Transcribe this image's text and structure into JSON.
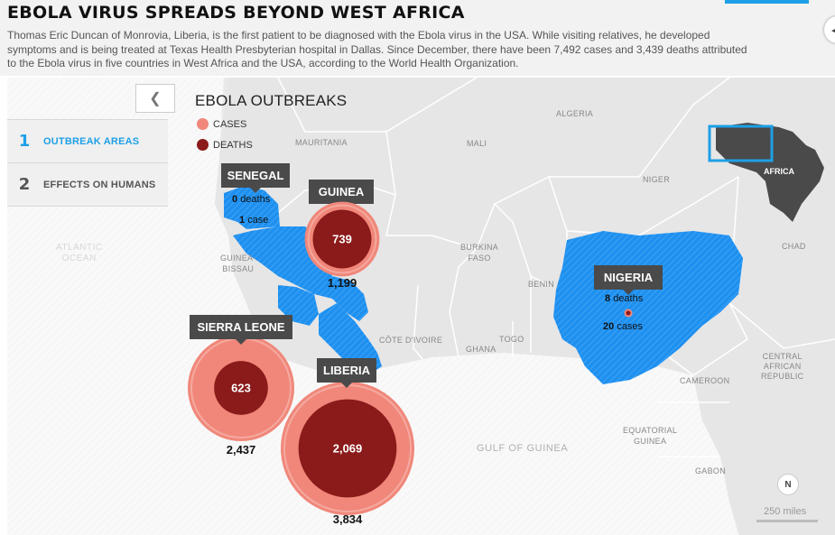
{
  "header": {
    "title": "EBOLA VIRUS SPREADS BEYOND WEST AFRICA",
    "intro": "Thomas Eric Duncan of Monrovia, Liberia, is the first patient to be diagnosed with the Ebola virus in the USA. While visiting relatives, he developed symptoms and is being treated at Texas Health Presbyterian hospital in Dallas. Since December, there have been 7,492 cases and 3,439 deaths attributed to the Ebola virus in five countries in West Africa and the USA, according to the World Health Organization."
  },
  "sidebar": {
    "collapse_icon": "chevron-left-icon",
    "items": [
      {
        "num": "1",
        "label": "OUTBREAK AREAS",
        "active": true
      },
      {
        "num": "2",
        "label": "EFFECTS ON HUMANS",
        "active": false
      }
    ]
  },
  "legend": {
    "title": "EBOLA OUTBREAKS",
    "cases_label": "CASES",
    "deaths_label": "DEATHS",
    "cases_color": "#f0877a",
    "deaths_color": "#8b1a1a"
  },
  "countries": {
    "senegal": {
      "name": "SENEGAL",
      "deaths": "0",
      "deaths_label": "deaths",
      "cases": "1",
      "cases_label": "case"
    },
    "guinea": {
      "name": "GUINEA",
      "deaths": "739",
      "cases": "1,199",
      "deaths_value": 739,
      "cases_value": 1199
    },
    "sierra_leone": {
      "name": "SIERRA LEONE",
      "deaths": "623",
      "cases": "2,437",
      "deaths_value": 623,
      "cases_value": 2437
    },
    "liberia": {
      "name": "LIBERIA",
      "deaths": "2,069",
      "cases": "3,834",
      "deaths_value": 2069,
      "cases_value": 3834
    },
    "nigeria": {
      "name": "NIGERIA",
      "deaths": "8",
      "deaths_label": "deaths",
      "cases": "20",
      "cases_label": "cases"
    }
  },
  "places": {
    "algeria": "ALGERIA",
    "mauritania": "MAURITANIA",
    "mali": "MALI",
    "niger": "NIGER",
    "chad": "CHAD",
    "burkina": "BURKINA",
    "faso": "FASO",
    "guinea_bissau_1": "GUINEA-",
    "guinea_bissau_2": "BISSAU",
    "benin": "BENIN",
    "cote_divoire": "CÔTE D'IVOIRE",
    "togo": "TOGO",
    "ghana": "GHANA",
    "car_1": "CENTRAL",
    "car_2": "AFRICAN",
    "car_3": "REPUBLIC",
    "cameroon": "CAMEROON",
    "eq_guinea_1": "EQUATORIAL",
    "eq_guinea_2": "GUINEA",
    "gabon": "GABON",
    "atlantic_1": "ATLANTIC",
    "atlantic_2": "OCEAN",
    "gulf": "GULF OF GUINEA",
    "africa": "AFRICA"
  },
  "map_controls": {
    "north": "N",
    "scale": "250 miles"
  },
  "colors": {
    "accent": "#1ea0e6",
    "affected": "#1e90f0",
    "land": "#e6e6e6",
    "ocean": "#ffffff"
  }
}
